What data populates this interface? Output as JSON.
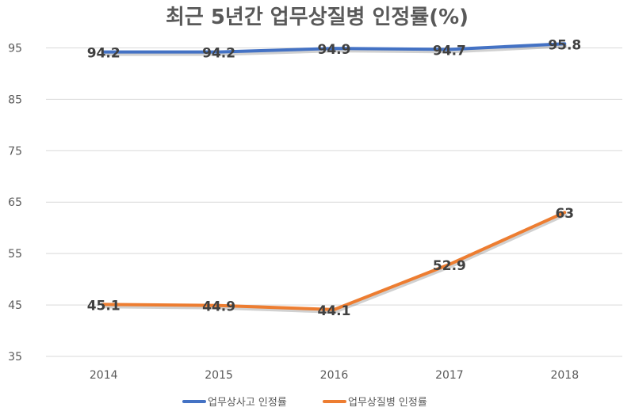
{
  "chart_data": {
    "type": "line",
    "title": "최근 5년간 업무상질병 인정률(%)",
    "xlabel": "",
    "ylabel": "",
    "categories": [
      "2014",
      "2015",
      "2016",
      "2017",
      "2018"
    ],
    "ylim": [
      35,
      100
    ],
    "yticks": [
      35,
      45,
      55,
      65,
      75,
      85,
      95
    ],
    "grid": true,
    "legend": "bottom",
    "series": [
      {
        "name": "업무상사고 인정률",
        "color": "#4472C4",
        "values": [
          94.2,
          94.2,
          94.9,
          94.7,
          95.8
        ],
        "labels": [
          "94.2",
          "94.2",
          "94.9",
          "94.7",
          "95.8"
        ]
      },
      {
        "name": "업무상질병 인정률",
        "color": "#ED7D31",
        "values": [
          45.1,
          44.9,
          44.1,
          52.9,
          63
        ],
        "labels": [
          "45.1",
          "44.9",
          "44.1",
          "52.9",
          "63"
        ]
      }
    ]
  }
}
